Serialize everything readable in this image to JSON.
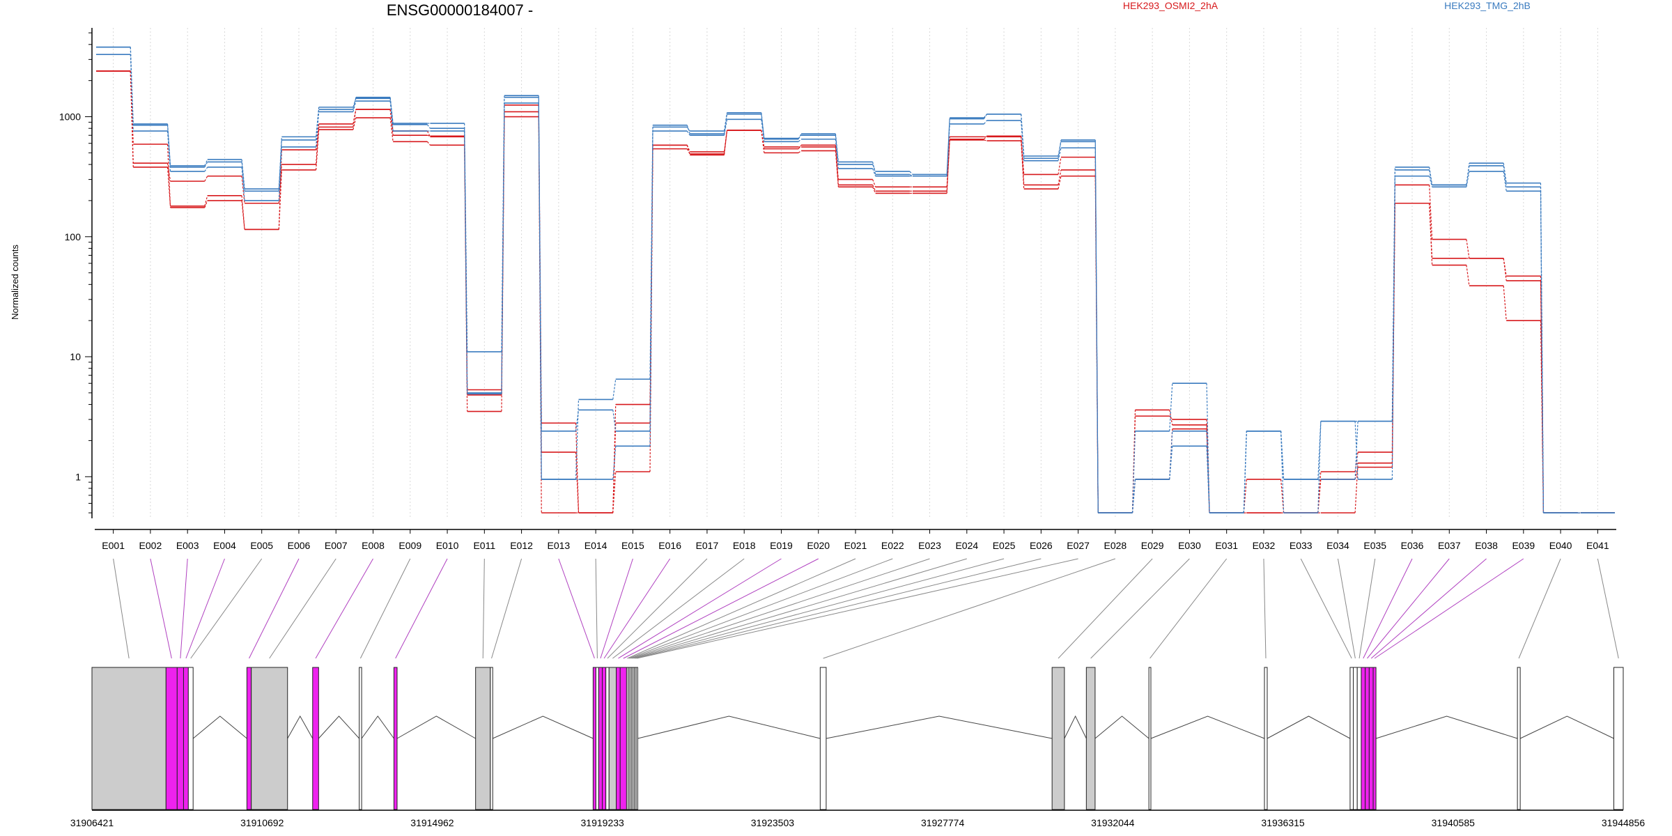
{
  "colors": {
    "cond_a": "#d7191c",
    "cond_b": "#3a7bbf",
    "grid": "#d8d8d8",
    "exon_fill": "#cccccc",
    "exon_diff": "#ee22ee",
    "connector_gray": "#888888",
    "connector_purple": "#b040c0"
  },
  "chart_data": {
    "type": "line",
    "title": "ENSG00000184007 -",
    "ylabel": "Normalized counts",
    "xlabel": "",
    "yscale": "log",
    "ylim": [
      0.45,
      5500
    ],
    "y_ticks": [
      {
        "value": 1,
        "label": "1"
      },
      {
        "value": 10,
        "label": "10"
      },
      {
        "value": 100,
        "label": "100"
      },
      {
        "value": 1000,
        "label": "1000"
      }
    ],
    "grid": "vertical-dotted",
    "legend_position": "top-right",
    "categories": [
      "E001",
      "E002",
      "E003",
      "E004",
      "E005",
      "E006",
      "E007",
      "E008",
      "E009",
      "E010",
      "E011",
      "E012",
      "E013",
      "E014",
      "E015",
      "E016",
      "E017",
      "E018",
      "E019",
      "E020",
      "E021",
      "E022",
      "E023",
      "E024",
      "E025",
      "E026",
      "E027",
      "E028",
      "E029",
      "E030",
      "E031",
      "E032",
      "E033",
      "E034",
      "E035",
      "E036",
      "E037",
      "E038",
      "E039",
      "E040",
      "E041"
    ],
    "legend": [
      {
        "name": "HEK293_OSMI2_2hA",
        "color": "#d7191c"
      },
      {
        "name": "HEK293_TMG_2hB",
        "color": "#3a7bbf"
      }
    ],
    "series": [
      {
        "group": "HEK293_OSMI2_2hA",
        "values": [
          2400,
          410,
          290,
          320,
          190,
          400,
          870,
          1150,
          760,
          680,
          4.8,
          1100,
          1.6,
          0.5,
          4.0,
          580,
          510,
          770,
          560,
          560,
          300,
          260,
          260,
          680,
          680,
          330,
          460,
          0.5,
          3.2,
          3.0,
          0.5,
          0.95,
          0.5,
          1.1,
          1.6,
          270,
          95,
          66,
          47,
          0.5,
          0.5
        ]
      },
      {
        "group": "HEK293_OSMI2_2hA",
        "values": [
          2400,
          380,
          180,
          220,
          115,
          360,
          780,
          980,
          620,
          580,
          3.5,
          1000,
          0.5,
          0.5,
          1.1,
          540,
          490,
          770,
          500,
          520,
          260,
          230,
          230,
          640,
          630,
          250,
          320,
          0.5,
          0.95,
          2.5,
          0.5,
          0.5,
          0.5,
          0.5,
          1.3,
          190,
          58,
          39,
          20,
          0.5,
          0.5
        ]
      },
      {
        "group": "HEK293_OSMI2_2hA",
        "values": [
          2400,
          590,
          175,
          200,
          115,
          530,
          820,
          1150,
          700,
          690,
          5.3,
          1250,
          2.8,
          0.5,
          2.8,
          580,
          480,
          770,
          540,
          580,
          270,
          240,
          240,
          650,
          690,
          270,
          360,
          0.5,
          3.6,
          2.7,
          0.5,
          0.5,
          0.5,
          0.95,
          1.2,
          190,
          66,
          66,
          43,
          0.5,
          0.5
        ]
      },
      {
        "group": "HEK293_TMG_2hB",
        "values": [
          3800,
          850,
          380,
          420,
          240,
          640,
          1150,
          1450,
          880,
          880,
          11,
          1500,
          0.95,
          4.4,
          6.5,
          820,
          760,
          1080,
          660,
          700,
          400,
          350,
          330,
          960,
          1050,
          470,
          620,
          0.5,
          2.4,
          6.0,
          0.5,
          2.4,
          0.5,
          2.9,
          2.9,
          360,
          270,
          390,
          260,
          0.5,
          0.5
        ]
      },
      {
        "group": "HEK293_TMG_2hB",
        "values": [
          3800,
          760,
          350,
          380,
          200,
          560,
          1100,
          1350,
          760,
          760,
          5.0,
          1300,
          2.4,
          3.6,
          2.4,
          760,
          700,
          950,
          620,
          650,
          370,
          320,
          320,
          870,
          930,
          430,
          550,
          0.5,
          0.95,
          2.4,
          0.5,
          2.4,
          0.95,
          2.9,
          0.95,
          320,
          260,
          350,
          240,
          0.5,
          0.5
        ]
      },
      {
        "group": "HEK293_TMG_2hB",
        "values": [
          3300,
          870,
          390,
          440,
          250,
          680,
          1200,
          1420,
          860,
          800,
          4.9,
          1450,
          0.95,
          0.95,
          1.8,
          850,
          720,
          1050,
          650,
          720,
          420,
          330,
          320,
          980,
          1050,
          450,
          640,
          0.5,
          0.95,
          1.8,
          0.5,
          2.4,
          0.95,
          0.95,
          2.9,
          380,
          270,
          410,
          280,
          0.5,
          0.5
        ]
      }
    ],
    "genomic_axis": {
      "tick_labels": [
        "31906421",
        "31910692",
        "31914962",
        "31919233",
        "31923503",
        "31927774",
        "31932044",
        "31936315",
        "31940585",
        "31944856"
      ]
    },
    "gene_model": {
      "exons": [
        {
          "id": "E001",
          "start": 31906421,
          "end": 31908280,
          "diff": false
        },
        {
          "id": "E002",
          "start": 31908280,
          "end": 31908560,
          "diff": true
        },
        {
          "id": "E003",
          "start": 31908560,
          "end": 31908720,
          "diff": true
        },
        {
          "id": "E004",
          "start": 31908720,
          "end": 31908840,
          "diff": true
        },
        {
          "id": "E005",
          "start": 31908840,
          "end": 31908960,
          "diff": false
        },
        {
          "id": "E006",
          "start": 31910310,
          "end": 31910420,
          "diff": true
        },
        {
          "id": "E007",
          "start": 31910420,
          "end": 31911330,
          "diff": false
        },
        {
          "id": "E008",
          "start": 31911960,
          "end": 31912110,
          "diff": true
        },
        {
          "id": "E009",
          "start": 31913130,
          "end": 31913190,
          "diff": false
        },
        {
          "id": "E010",
          "start": 31914000,
          "end": 31914080,
          "diff": true
        },
        {
          "id": "E011",
          "start": 31916050,
          "end": 31916420,
          "diff": false
        },
        {
          "id": "E012",
          "start": 31916420,
          "end": 31916480,
          "diff": false
        },
        {
          "id": "E013",
          "start": 31919000,
          "end": 31919070,
          "diff": true
        },
        {
          "id": "E014",
          "start": 31919070,
          "end": 31919140,
          "diff": false
        },
        {
          "id": "E015",
          "start": 31919140,
          "end": 31919230,
          "diff": true
        },
        {
          "id": "E016",
          "start": 31919230,
          "end": 31919320,
          "diff": true
        },
        {
          "id": "E017",
          "start": 31919320,
          "end": 31919400,
          "diff": false
        },
        {
          "id": "E018",
          "start": 31919400,
          "end": 31919580,
          "diff": false
        },
        {
          "id": "E019",
          "start": 31919580,
          "end": 31919680,
          "diff": true
        },
        {
          "id": "E020",
          "start": 31919680,
          "end": 31919840,
          "diff": true
        },
        {
          "id": "E021",
          "start": 31919840,
          "end": 31919880,
          "diff": false
        },
        {
          "id": "E022",
          "start": 31919880,
          "end": 31919920,
          "diff": false
        },
        {
          "id": "E023",
          "start": 31919920,
          "end": 31919960,
          "diff": false
        },
        {
          "id": "E024",
          "start": 31919960,
          "end": 31920000,
          "diff": false
        },
        {
          "id": "E025",
          "start": 31920000,
          "end": 31920040,
          "diff": false
        },
        {
          "id": "E026",
          "start": 31920040,
          "end": 31920080,
          "diff": false
        },
        {
          "id": "E027",
          "start": 31920080,
          "end": 31920120,
          "diff": false
        },
        {
          "id": "E028",
          "start": 31924700,
          "end": 31924850,
          "diff": false
        },
        {
          "id": "E029",
          "start": 31930520,
          "end": 31930830,
          "diff": false
        },
        {
          "id": "E030",
          "start": 31931380,
          "end": 31931600,
          "diff": false
        },
        {
          "id": "E031",
          "start": 31932950,
          "end": 31933000,
          "diff": false
        },
        {
          "id": "E032",
          "start": 31935850,
          "end": 31935920,
          "diff": false
        },
        {
          "id": "E033",
          "start": 31938000,
          "end": 31938080,
          "diff": false
        },
        {
          "id": "E034",
          "start": 31938080,
          "end": 31938180,
          "diff": false
        },
        {
          "id": "E035",
          "start": 31938180,
          "end": 31938280,
          "diff": false
        },
        {
          "id": "E036",
          "start": 31938280,
          "end": 31938380,
          "diff": true
        },
        {
          "id": "E037",
          "start": 31938380,
          "end": 31938480,
          "diff": true
        },
        {
          "id": "E038",
          "start": 31938480,
          "end": 31938580,
          "diff": true
        },
        {
          "id": "E039",
          "start": 31938580,
          "end": 31938650,
          "diff": true
        },
        {
          "id": "E040",
          "start": 31942200,
          "end": 31942270,
          "diff": false
        },
        {
          "id": "E041",
          "start": 31944620,
          "end": 31944856,
          "diff": false
        }
      ]
    }
  }
}
